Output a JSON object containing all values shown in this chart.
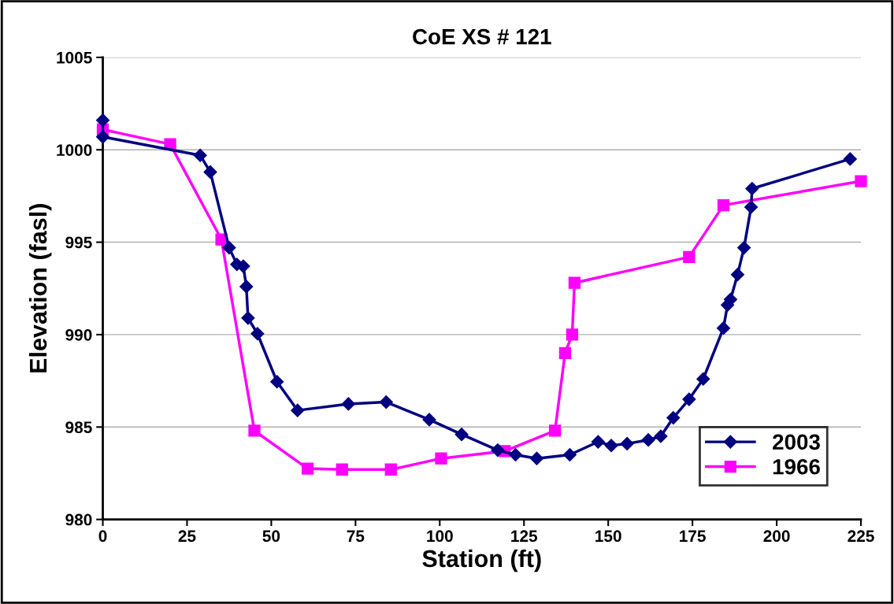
{
  "chart_data": {
    "type": "line",
    "title": "CoE XS # 121",
    "xlabel": "Station (ft)",
    "ylabel": "Elevation (fasl)",
    "xlim": [
      0,
      225
    ],
    "xticks": [
      0,
      25,
      50,
      75,
      100,
      125,
      150,
      175,
      200,
      225
    ],
    "ylim": [
      980,
      1005
    ],
    "yticks": [
      980,
      985,
      990,
      995,
      1000,
      1005
    ],
    "grid": "y",
    "legend": "bottom right",
    "series": [
      {
        "name": "2003",
        "color": "#000080",
        "marker": "diamond",
        "x": [
          0,
          0,
          28.9,
          31.9,
          37.5,
          39.8,
          41.7,
          42.6,
          43.1,
          45.9,
          51.7,
          57.8,
          72.9,
          84.1,
          96.9,
          106.5,
          117.2,
          122.5,
          128.8,
          138.6,
          147.0,
          150.9,
          155.6,
          161.9,
          165.6,
          169.3,
          174.0,
          178.2,
          184.2,
          185.4,
          186.3,
          188.4,
          190.3,
          192.4,
          192.7,
          221.8
        ],
        "values": [
          1001.6,
          1000.7,
          999.7,
          998.8,
          994.7,
          993.8,
          993.7,
          992.6,
          990.9,
          990.05,
          987.45,
          985.9,
          986.25,
          986.35,
          985.4,
          984.6,
          983.75,
          983.5,
          983.3,
          983.5,
          984.2,
          984.0,
          984.1,
          984.3,
          984.5,
          985.5,
          986.5,
          987.6,
          990.35,
          991.6,
          991.9,
          993.25,
          994.7,
          996.9,
          997.9,
          999.5
        ]
      },
      {
        "name": "1966",
        "color": "#ff00ff",
        "marker": "square",
        "x": [
          0,
          20,
          35.2,
          45.0,
          60.8,
          71.0,
          85.5,
          100.4,
          119.3,
          134.2,
          137.2,
          139.3,
          140.0,
          174.0,
          184.2,
          225
        ],
        "values": [
          1001.1,
          1000.3,
          995.15,
          984.8,
          982.75,
          982.7,
          982.7,
          983.3,
          983.7,
          984.8,
          989.0,
          990.0,
          992.8,
          994.2,
          997.0,
          998.3
        ]
      }
    ]
  }
}
